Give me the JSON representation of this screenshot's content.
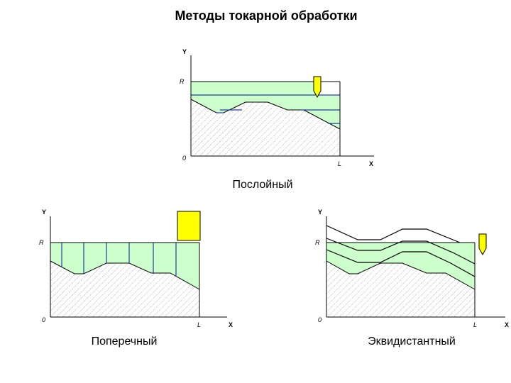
{
  "title": "Методы токарной обработки",
  "diagrams": {
    "layer": {
      "caption": "Послойный",
      "y_axis": "Y",
      "x_axis": "X",
      "r_label": "R",
      "origin": "0",
      "l_label": "L"
    },
    "transverse": {
      "caption": "Поперечный",
      "y_axis": "Y",
      "x_axis": "X",
      "r_label": "R",
      "origin": "0",
      "l_label": "L"
    },
    "equidistant": {
      "caption": "Эквидистантный",
      "y_axis": "Y",
      "x_axis": "X",
      "r_label": "R",
      "origin": "0",
      "l_label": "L"
    }
  },
  "colors": {
    "allowance_fill": "#ccffcc",
    "pass_line": "#1f3fa0",
    "tool_yellow": "#ffff00",
    "workpiece_hatch": "#808080"
  },
  "icons": [
    "cutting-tool-icon",
    "rectangular-tool-icon"
  ]
}
